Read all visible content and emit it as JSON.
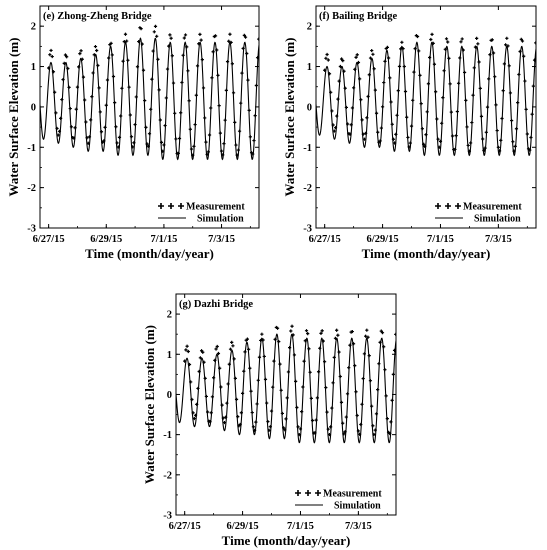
{
  "chart_data": [
    {
      "type": "line",
      "panel_label": "(e) Zhong-Zheng Bridge",
      "xlabel": "Time (month/day/year)",
      "ylabel": "Water Surface Elevation (m)",
      "x_ticks": [
        "6/27/15",
        "6/29/15",
        "7/1/15",
        "7/3/15"
      ],
      "x_tick_days": [
        0,
        2,
        4,
        6
      ],
      "xlim": [
        -0.3,
        7.3
      ],
      "ylim": [
        -3,
        2.5
      ],
      "y_ticks": [
        -3,
        -2,
        -1,
        0,
        1,
        2
      ],
      "grid": false,
      "legend": "bottom-right",
      "series": [
        {
          "name": "Measurement",
          "style": "markers",
          "high_tide_peaks": [
            1.4,
            1.3,
            1.4,
            1.5,
            1.6,
            1.8,
            2.0,
            2.0,
            1.8
          ],
          "low_tide_troughs": [
            -0.6,
            -0.7,
            -0.8,
            -0.9,
            -0.9,
            -1.0,
            -1.0,
            -1.0,
            -1.1,
            -1.2
          ]
        },
        {
          "name": "Simulation",
          "style": "line",
          "high_tide_peaks": [
            1.1,
            1.1,
            1.2,
            1.3,
            1.5,
            1.6,
            1.7,
            1.7,
            1.6
          ],
          "low_tide_troughs": [
            -0.8,
            -0.9,
            -1.0,
            -1.1,
            -1.1,
            -1.2,
            -1.2,
            -1.2,
            -1.3,
            -1.3
          ]
        }
      ]
    },
    {
      "type": "line",
      "panel_label": "(f) Bailing Bridge",
      "xlabel": "Time (month/day/year)",
      "ylabel": "Water Surface Elevation (m)",
      "x_ticks": [
        "6/27/15",
        "6/29/15",
        "7/1/15",
        "7/3/15"
      ],
      "x_tick_days": [
        0,
        2,
        4,
        6
      ],
      "xlim": [
        -0.3,
        7.3
      ],
      "ylim": [
        -3,
        2.5
      ],
      "y_ticks": [
        -3,
        -2,
        -1,
        0,
        1,
        2
      ],
      "grid": false,
      "legend": "bottom-right",
      "series": [
        {
          "name": "Measurement",
          "style": "markers",
          "high_tide_peaks": [
            1.3,
            1.2,
            1.3,
            1.4,
            1.5,
            1.6,
            1.8,
            1.8,
            1.7
          ],
          "low_tide_troughs": [
            -0.5,
            -0.6,
            -0.7,
            -0.8,
            -0.9,
            -0.9,
            -1.0,
            -1.0,
            -1.0,
            -1.1
          ]
        },
        {
          "name": "Simulation",
          "style": "line",
          "high_tide_peaks": [
            1.0,
            1.0,
            1.1,
            1.2,
            1.4,
            1.5,
            1.6,
            1.6,
            1.5
          ],
          "low_tide_troughs": [
            -0.7,
            -0.8,
            -0.9,
            -1.0,
            -1.0,
            -1.1,
            -1.1,
            -1.2,
            -1.2,
            -1.2
          ]
        }
      ]
    },
    {
      "type": "line",
      "panel_label": "(g) Dazhi Bridge",
      "xlabel": "Time (month/day/year)",
      "ylabel": "Water Surface Elevation (m)",
      "x_ticks": [
        "6/27/15",
        "6/29/15",
        "7/1/15",
        "7/3/15"
      ],
      "x_tick_days": [
        0,
        2,
        4,
        6
      ],
      "xlim": [
        -0.3,
        7.3
      ],
      "ylim": [
        -3,
        2.5
      ],
      "y_ticks": [
        -3,
        -2,
        -1,
        0,
        1,
        2
      ],
      "grid": false,
      "legend": "bottom-right",
      "series": [
        {
          "name": "Measurement",
          "style": "markers",
          "high_tide_peaks": [
            1.2,
            1.1,
            1.2,
            1.3,
            1.4,
            1.5,
            1.7,
            1.7,
            1.6
          ],
          "low_tide_troughs": [
            -0.5,
            -0.6,
            -0.7,
            -0.7,
            -0.8,
            -0.9,
            -0.9,
            -0.9,
            -1.0,
            -1.0
          ]
        },
        {
          "name": "Simulation",
          "style": "line",
          "high_tide_peaks": [
            0.9,
            0.9,
            1.0,
            1.1,
            1.3,
            1.4,
            1.5,
            1.5,
            1.4
          ],
          "low_tide_troughs": [
            -0.7,
            -0.8,
            -0.8,
            -0.9,
            -1.0,
            -1.0,
            -1.1,
            -1.1,
            -1.2,
            -1.2
          ]
        }
      ]
    }
  ]
}
